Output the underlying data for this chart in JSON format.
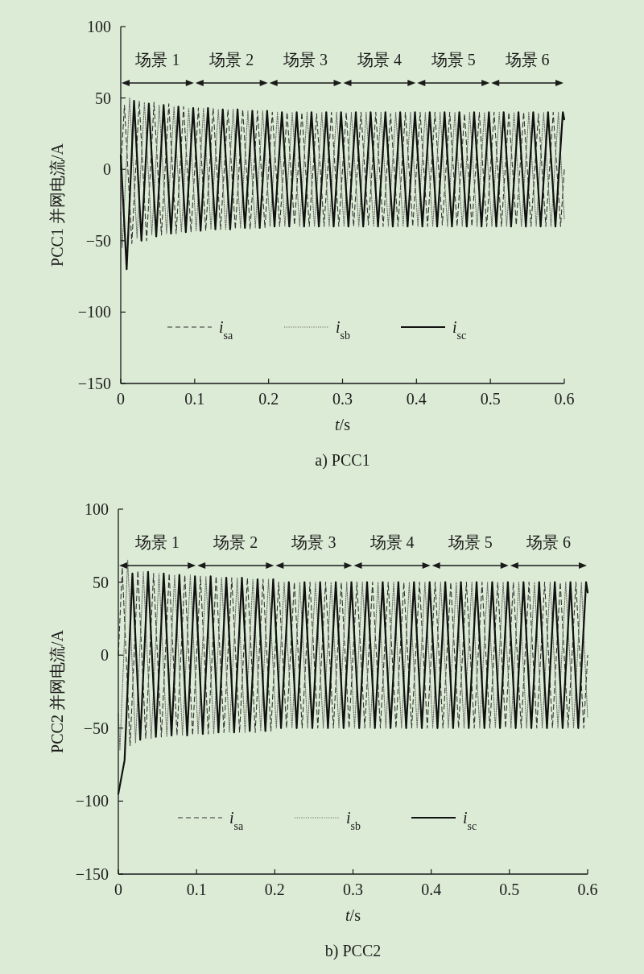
{
  "chart_data": [
    {
      "type": "line",
      "title": "a) PCC1",
      "xlabel": "*t*/s",
      "ylabel": "PCC1 并网电流/A",
      "xlim": [
        0,
        0.6
      ],
      "ylim": [
        -150,
        100
      ],
      "xticks": [
        0,
        0.1,
        0.2,
        0.3,
        0.4,
        0.5,
        0.6
      ],
      "yticks": [
        {
          "value": -150,
          "label": "−150"
        },
        {
          "value": -100,
          "label": "−100"
        },
        {
          "value": -50,
          "label": "−50"
        },
        0,
        50,
        100
      ],
      "legend": "bottom",
      "grid": false,
      "marker": "none",
      "annotations": [
        "场景 1",
        "场景 2",
        "场景 3",
        "场景 4",
        "场景 5",
        "场景 6"
      ],
      "series": [
        {
          "name": "*i*$_{sa}$",
          "color": "#333333",
          "line_style": "dashed",
          "x": [
            0,
            0.005,
            0.015,
            0.025,
            0.035,
            0.045,
            0.055,
            0.065,
            0.075,
            0.085,
            0.095,
            0.105,
            0.115,
            0.125,
            0.135,
            0.145,
            0.155,
            0.165,
            0.175,
            0.185,
            0.195,
            0.205,
            0.215,
            0.225,
            0.235,
            0.245,
            0.255,
            0.265,
            0.275,
            0.285,
            0.295,
            0.305,
            0.315,
            0.325,
            0.335,
            0.345,
            0.355,
            0.365,
            0.375,
            0.385,
            0.395,
            0.405,
            0.415,
            0.425,
            0.435,
            0.445,
            0.455,
            0.465,
            0.475,
            0.485,
            0.495,
            0.505,
            0.515,
            0.525,
            0.535,
            0.545,
            0.555,
            0.565,
            0.575,
            0.585,
            0.595,
            0.6
          ],
          "values": [
            0,
            45,
            -52,
            48,
            -50,
            47,
            -46,
            46,
            -45,
            44,
            -44,
            43,
            -43,
            43,
            -42,
            42,
            -42,
            42,
            -42,
            41,
            -41,
            40,
            -40,
            40,
            -39,
            40,
            -40,
            39,
            -40,
            40,
            -40,
            40,
            -40,
            40,
            -39,
            40,
            -40,
            39,
            -40,
            40,
            -40,
            40,
            -40,
            40,
            -39,
            40,
            -40,
            39,
            -40,
            40,
            -40,
            40,
            -40,
            40,
            -39,
            40,
            -40,
            39,
            -40,
            40,
            -40,
            0
          ]
        },
        {
          "name": "*i*$_{sb}$",
          "color": "#666666",
          "line_style": "dotted",
          "x": [
            0,
            0.002,
            0.012,
            0.022,
            0.032,
            0.042,
            0.052,
            0.062,
            0.072,
            0.082,
            0.092,
            0.102,
            0.112,
            0.122,
            0.132,
            0.142,
            0.152,
            0.162,
            0.172,
            0.182,
            0.192,
            0.202,
            0.212,
            0.222,
            0.232,
            0.242,
            0.252,
            0.262,
            0.272,
            0.282,
            0.292,
            0.302,
            0.312,
            0.322,
            0.332,
            0.342,
            0.352,
            0.362,
            0.372,
            0.382,
            0.392,
            0.402,
            0.412,
            0.422,
            0.432,
            0.442,
            0.452,
            0.462,
            0.472,
            0.482,
            0.492,
            0.502,
            0.512,
            0.522,
            0.532,
            0.542,
            0.552,
            0.562,
            0.572,
            0.582,
            0.592,
            0.6
          ],
          "values": [
            -30,
            -55,
            50,
            -48,
            47,
            -46,
            45,
            -45,
            44,
            -44,
            43,
            -43,
            43,
            -42,
            42,
            -42,
            42,
            -41,
            41,
            -41,
            41,
            -40,
            40,
            -40,
            40,
            -40,
            40,
            -40,
            40,
            -40,
            40,
            -40,
            40,
            -40,
            40,
            -40,
            40,
            -40,
            40,
            -40,
            40,
            -40,
            40,
            -40,
            40,
            -40,
            40,
            -40,
            40,
            -40,
            40,
            -40,
            40,
            -40,
            40,
            -40,
            40,
            -40,
            40,
            -40,
            40,
            -35
          ]
        },
        {
          "name": "*i*$_{sc}$",
          "color": "#111111",
          "line_style": "solid",
          "x": [
            0,
            0.008,
            0.018,
            0.028,
            0.038,
            0.048,
            0.058,
            0.068,
            0.078,
            0.088,
            0.098,
            0.108,
            0.118,
            0.128,
            0.138,
            0.148,
            0.158,
            0.168,
            0.178,
            0.188,
            0.198,
            0.208,
            0.218,
            0.228,
            0.238,
            0.248,
            0.258,
            0.268,
            0.278,
            0.288,
            0.298,
            0.308,
            0.318,
            0.328,
            0.338,
            0.348,
            0.358,
            0.368,
            0.378,
            0.388,
            0.398,
            0.408,
            0.418,
            0.428,
            0.438,
            0.448,
            0.458,
            0.468,
            0.478,
            0.488,
            0.498,
            0.508,
            0.518,
            0.528,
            0.538,
            0.548,
            0.558,
            0.568,
            0.578,
            0.588,
            0.598,
            0.6
          ],
          "values": [
            10,
            -70,
            48,
            -50,
            46,
            -47,
            45,
            -45,
            44,
            -44,
            43,
            -43,
            43,
            -42,
            42,
            -42,
            42,
            -41,
            41,
            -41,
            41,
            -40,
            40,
            -40,
            40,
            -40,
            40,
            -40,
            40,
            -40,
            40,
            -40,
            40,
            -40,
            40,
            -40,
            40,
            -40,
            40,
            -40,
            40,
            -40,
            40,
            -40,
            40,
            -40,
            40,
            -40,
            40,
            -40,
            40,
            -40,
            40,
            -40,
            40,
            -40,
            40,
            -40,
            40,
            -40,
            40,
            35
          ]
        }
      ]
    },
    {
      "type": "line",
      "title": "b) PCC2",
      "xlabel": "*t*/s",
      "ylabel": "PCC2 并网电流/A",
      "xlim": [
        0,
        0.6
      ],
      "ylim": [
        -150,
        100
      ],
      "xticks": [
        0,
        0.1,
        0.2,
        0.3,
        0.4,
        0.5,
        0.6
      ],
      "yticks": [
        {
          "value": -150,
          "label": "−150"
        },
        {
          "value": -100,
          "label": "−100"
        },
        {
          "value": -50,
          "label": "−50"
        },
        0,
        50,
        100
      ],
      "legend": "bottom",
      "grid": false,
      "marker": "none",
      "annotations": [
        "场景 1",
        "场景 2",
        "场景 3",
        "场景 4",
        "场景 5",
        "场景 6"
      ],
      "series": [
        {
          "name": "*i*$_{sa}$",
          "color": "#333333",
          "line_style": "dashed",
          "x": [
            0,
            0.005,
            0.015,
            0.025,
            0.035,
            0.045,
            0.055,
            0.065,
            0.075,
            0.085,
            0.095,
            0.105,
            0.115,
            0.125,
            0.135,
            0.145,
            0.155,
            0.165,
            0.175,
            0.185,
            0.195,
            0.205,
            0.215,
            0.225,
            0.235,
            0.245,
            0.255,
            0.265,
            0.275,
            0.285,
            0.295,
            0.305,
            0.315,
            0.325,
            0.335,
            0.345,
            0.355,
            0.365,
            0.375,
            0.385,
            0.395,
            0.405,
            0.415,
            0.425,
            0.435,
            0.445,
            0.455,
            0.465,
            0.475,
            0.485,
            0.495,
            0.505,
            0.515,
            0.525,
            0.535,
            0.545,
            0.555,
            0.565,
            0.575,
            0.585,
            0.595,
            0.6
          ],
          "values": [
            0,
            60,
            -62,
            58,
            -57,
            56,
            -56,
            56,
            -55,
            55,
            -55,
            54,
            -54,
            54,
            -53,
            53,
            -53,
            53,
            -53,
            52,
            -52,
            50,
            -50,
            50,
            -50,
            50,
            -50,
            50,
            -50,
            50,
            -50,
            50,
            -50,
            50,
            -50,
            50,
            -50,
            50,
            -50,
            50,
            -50,
            50,
            -50,
            50,
            -50,
            50,
            -50,
            50,
            -50,
            50,
            -50,
            50,
            -50,
            50,
            -50,
            50,
            -50,
            50,
            -50,
            50,
            -50,
            0
          ]
        },
        {
          "name": "*i*$_{sb}$",
          "color": "#666666",
          "line_style": "dotted",
          "x": [
            0,
            0.002,
            0.012,
            0.022,
            0.032,
            0.042,
            0.052,
            0.062,
            0.072,
            0.082,
            0.092,
            0.102,
            0.112,
            0.122,
            0.132,
            0.142,
            0.152,
            0.162,
            0.172,
            0.182,
            0.192,
            0.202,
            0.212,
            0.222,
            0.232,
            0.242,
            0.252,
            0.262,
            0.272,
            0.282,
            0.292,
            0.302,
            0.312,
            0.322,
            0.332,
            0.342,
            0.352,
            0.362,
            0.372,
            0.382,
            0.392,
            0.402,
            0.412,
            0.422,
            0.432,
            0.442,
            0.452,
            0.462,
            0.472,
            0.482,
            0.492,
            0.502,
            0.512,
            0.522,
            0.532,
            0.542,
            0.552,
            0.562,
            0.572,
            0.582,
            0.592,
            0.6
          ],
          "values": [
            -40,
            -65,
            65,
            -60,
            57,
            -57,
            56,
            -56,
            55,
            -55,
            55,
            -54,
            54,
            -54,
            53,
            -53,
            53,
            -53,
            52,
            -52,
            52,
            -50,
            50,
            -50,
            50,
            -50,
            50,
            -50,
            50,
            -50,
            50,
            -50,
            50,
            -50,
            50,
            -50,
            50,
            -50,
            50,
            -50,
            50,
            -50,
            50,
            -50,
            50,
            -50,
            50,
            -50,
            50,
            -50,
            50,
            -50,
            50,
            -50,
            50,
            -50,
            50,
            -50,
            50,
            -50,
            50,
            -43
          ]
        },
        {
          "name": "*i*$_{sc}$",
          "color": "#111111",
          "line_style": "solid",
          "x": [
            0,
            0.008,
            0.018,
            0.028,
            0.038,
            0.048,
            0.058,
            0.068,
            0.078,
            0.088,
            0.098,
            0.108,
            0.118,
            0.128,
            0.138,
            0.148,
            0.158,
            0.168,
            0.178,
            0.188,
            0.198,
            0.208,
            0.218,
            0.228,
            0.238,
            0.248,
            0.258,
            0.268,
            0.278,
            0.288,
            0.298,
            0.308,
            0.318,
            0.328,
            0.338,
            0.348,
            0.358,
            0.368,
            0.378,
            0.388,
            0.398,
            0.408,
            0.418,
            0.428,
            0.438,
            0.448,
            0.458,
            0.468,
            0.478,
            0.488,
            0.498,
            0.508,
            0.518,
            0.528,
            0.538,
            0.548,
            0.558,
            0.568,
            0.578,
            0.588,
            0.598,
            0.6
          ],
          "values": [
            -95,
            -72,
            56,
            -58,
            57,
            -56,
            56,
            -55,
            55,
            -55,
            54,
            -54,
            54,
            -53,
            53,
            -53,
            53,
            -52,
            52,
            -52,
            52,
            -50,
            50,
            -50,
            50,
            -50,
            50,
            -50,
            50,
            -50,
            50,
            -50,
            50,
            -50,
            50,
            -50,
            50,
            -50,
            50,
            -50,
            50,
            -50,
            50,
            -50,
            50,
            -50,
            50,
            -50,
            50,
            -50,
            50,
            -50,
            50,
            -50,
            50,
            -50,
            50,
            -50,
            50,
            -50,
            50,
            43
          ]
        }
      ]
    }
  ]
}
